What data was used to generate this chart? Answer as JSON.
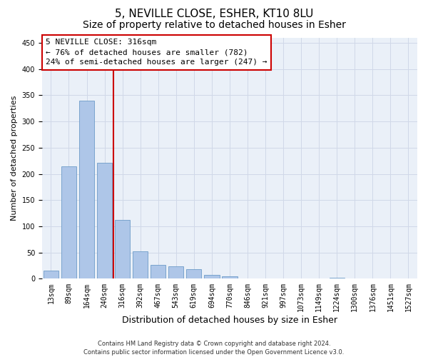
{
  "title": "5, NEVILLE CLOSE, ESHER, KT10 8LU",
  "subtitle": "Size of property relative to detached houses in Esher",
  "xlabel": "Distribution of detached houses by size in Esher",
  "ylabel": "Number of detached properties",
  "categories": [
    "13sqm",
    "89sqm",
    "164sqm",
    "240sqm",
    "316sqm",
    "392sqm",
    "467sqm",
    "543sqm",
    "619sqm",
    "694sqm",
    "770sqm",
    "846sqm",
    "921sqm",
    "997sqm",
    "1073sqm",
    "1149sqm",
    "1224sqm",
    "1300sqm",
    "1376sqm",
    "1451sqm",
    "1527sqm"
  ],
  "values": [
    16,
    214,
    340,
    221,
    112,
    52,
    26,
    24,
    18,
    8,
    5,
    0,
    0,
    0,
    0,
    0,
    2,
    0,
    0,
    0,
    1
  ],
  "bar_color": "#aec6e8",
  "bar_edge_color": "#5a8fc0",
  "vline_color": "#cc0000",
  "vline_x_index": 4,
  "annotation_text": "5 NEVILLE CLOSE: 316sqm\n← 76% of detached houses are smaller (782)\n24% of semi-detached houses are larger (247) →",
  "annotation_box_color": "#cc0000",
  "annotation_bg_color": "#ffffff",
  "ylim": [
    0,
    460
  ],
  "yticks": [
    0,
    50,
    100,
    150,
    200,
    250,
    300,
    350,
    400,
    450
  ],
  "grid_color": "#d0d8e8",
  "bg_color": "#eaf0f8",
  "footer": "Contains HM Land Registry data © Crown copyright and database right 2024.\nContains public sector information licensed under the Open Government Licence v3.0.",
  "title_fontsize": 11,
  "subtitle_fontsize": 10,
  "xlabel_fontsize": 9,
  "ylabel_fontsize": 8,
  "tick_fontsize": 7,
  "annotation_fontsize": 8,
  "footer_fontsize": 6
}
